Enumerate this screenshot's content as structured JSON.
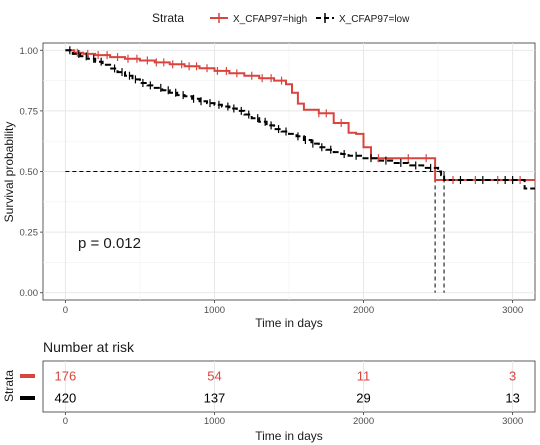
{
  "legend": {
    "title": "Strata",
    "entries": [
      {
        "label": "X_CFAP97=high",
        "color": "#d9443f"
      },
      {
        "label": "X_CFAP97=low",
        "color": "#000000"
      }
    ]
  },
  "p_value_text": "p = 0.012",
  "chart_data": {
    "type": "line",
    "subtype": "kaplan-meier",
    "xlabel": "Time in days",
    "ylabel": "Survival probability",
    "xlim": [
      -150,
      3150
    ],
    "ylim": [
      -0.03,
      1.03
    ],
    "x_ticks": [
      0,
      1000,
      2000,
      3000
    ],
    "y_ticks": [
      0.0,
      0.25,
      0.5,
      0.75,
      1.0
    ],
    "y_tick_labels": [
      "0.00",
      "0.25",
      "0.50",
      "0.75",
      "1.00"
    ],
    "median_line": 0.5,
    "grid": true,
    "legend_position": "top",
    "series": [
      {
        "name": "X_CFAP97=high",
        "color": "#d9443f",
        "dash": false,
        "steps": [
          [
            0,
            1.0
          ],
          [
            60,
            0.99
          ],
          [
            120,
            0.985
          ],
          [
            200,
            0.98
          ],
          [
            300,
            0.972
          ],
          [
            400,
            0.965
          ],
          [
            500,
            0.958
          ],
          [
            600,
            0.95
          ],
          [
            700,
            0.942
          ],
          [
            800,
            0.934
          ],
          [
            900,
            0.926
          ],
          [
            1000,
            0.915
          ],
          [
            1100,
            0.905
          ],
          [
            1200,
            0.895
          ],
          [
            1300,
            0.885
          ],
          [
            1400,
            0.875
          ],
          [
            1480,
            0.86
          ],
          [
            1520,
            0.825
          ],
          [
            1560,
            0.78
          ],
          [
            1600,
            0.755
          ],
          [
            1700,
            0.74
          ],
          [
            1800,
            0.7
          ],
          [
            1900,
            0.66
          ],
          [
            1950,
            0.655
          ],
          [
            2000,
            0.6
          ],
          [
            2050,
            0.555
          ],
          [
            2450,
            0.555
          ],
          [
            2480,
            0.465
          ],
          [
            3150,
            0.465
          ]
        ],
        "censor_times": [
          80,
          150,
          220,
          280,
          350,
          420,
          480,
          550,
          610,
          660,
          720,
          780,
          830,
          880,
          950,
          1020,
          1080,
          1150,
          1250,
          1320,
          1380,
          1450,
          1700,
          1750,
          1850,
          2100,
          2300,
          2420,
          2600,
          2750,
          2900,
          3050
        ]
      },
      {
        "name": "X_CFAP97=low",
        "color": "#000000",
        "dash": true,
        "steps": [
          [
            0,
            1.0
          ],
          [
            50,
            0.985
          ],
          [
            100,
            0.975
          ],
          [
            150,
            0.965
          ],
          [
            200,
            0.953
          ],
          [
            250,
            0.94
          ],
          [
            300,
            0.925
          ],
          [
            350,
            0.91
          ],
          [
            400,
            0.895
          ],
          [
            450,
            0.88
          ],
          [
            500,
            0.865
          ],
          [
            550,
            0.855
          ],
          [
            600,
            0.845
          ],
          [
            650,
            0.835
          ],
          [
            700,
            0.825
          ],
          [
            750,
            0.815
          ],
          [
            800,
            0.81
          ],
          [
            850,
            0.8
          ],
          [
            900,
            0.79
          ],
          [
            950,
            0.782
          ],
          [
            1000,
            0.775
          ],
          [
            1050,
            0.768
          ],
          [
            1100,
            0.76
          ],
          [
            1150,
            0.75
          ],
          [
            1200,
            0.735
          ],
          [
            1250,
            0.72
          ],
          [
            1300,
            0.705
          ],
          [
            1350,
            0.69
          ],
          [
            1400,
            0.675
          ],
          [
            1450,
            0.665
          ],
          [
            1500,
            0.655
          ],
          [
            1550,
            0.645
          ],
          [
            1600,
            0.63
          ],
          [
            1650,
            0.615
          ],
          [
            1700,
            0.6
          ],
          [
            1750,
            0.59
          ],
          [
            1800,
            0.58
          ],
          [
            1850,
            0.572
          ],
          [
            1900,
            0.565
          ],
          [
            2000,
            0.555
          ],
          [
            2100,
            0.545
          ],
          [
            2200,
            0.535
          ],
          [
            2300,
            0.525
          ],
          [
            2400,
            0.515
          ],
          [
            2500,
            0.5
          ],
          [
            2520,
            0.485
          ],
          [
            2540,
            0.465
          ],
          [
            3050,
            0.465
          ],
          [
            3080,
            0.43
          ],
          [
            3150,
            0.43
          ]
        ],
        "censor_times": [
          30,
          90,
          140,
          190,
          240,
          330,
          380,
          430,
          470,
          520,
          570,
          640,
          690,
          740,
          790,
          860,
          910,
          970,
          1030,
          1090,
          1130,
          1180,
          1230,
          1290,
          1340,
          1380,
          1430,
          1480,
          1560,
          1610,
          1660,
          1720,
          1780,
          1870,
          1950,
          2050,
          2150,
          2250,
          2350,
          2450,
          2650,
          2800,
          2950,
          3000
        ]
      }
    ],
    "median_drops": [
      {
        "series": "X_CFAP97=high",
        "time": 2480
      },
      {
        "series": "X_CFAP97=low",
        "time": 2540
      }
    ]
  },
  "risk_table": {
    "title": "Number at risk",
    "ylabel": "Strata",
    "xlabel": "Time in days",
    "times": [
      0,
      1000,
      2000,
      3000
    ],
    "time_labels": [
      "0",
      "1000",
      "2000",
      "3000"
    ],
    "rows": [
      {
        "name": "X_CFAP97=high",
        "color": "#d9443f",
        "values": [
          "176",
          "54",
          "11",
          "3"
        ]
      },
      {
        "name": "X_CFAP97=low",
        "color": "#000000",
        "values": [
          "420",
          "137",
          "29",
          "13"
        ]
      }
    ]
  }
}
